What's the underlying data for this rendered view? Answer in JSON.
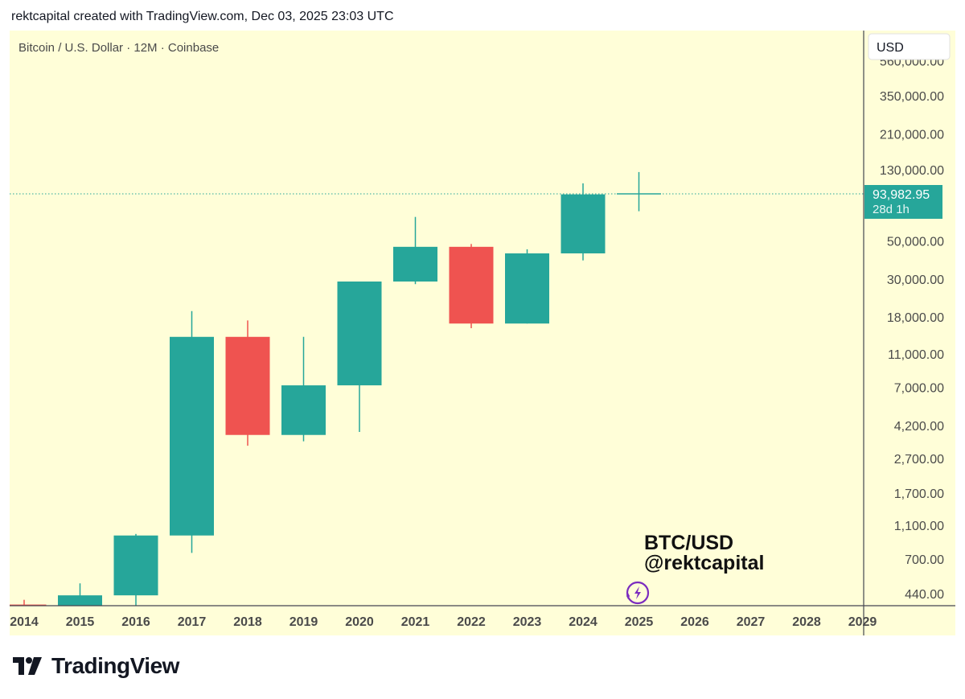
{
  "header": {
    "caption": "rektcapital created with TradingView.com, Dec 03, 2025 23:03 UTC"
  },
  "chart": {
    "symbol_title": "Bitcoin / U.S. Dollar · 12M · Coinbase",
    "currency": "USD",
    "watermark_line1": "BTC/USD",
    "watermark_line2": "@rektcapital",
    "last_price": "93,982.95",
    "countdown": "28d 1h"
  },
  "colors": {
    "background": "#fffed8",
    "up": "#26a69a",
    "down": "#ef5350",
    "axis_text": "#4a4a4a",
    "price_tag": "#26a69a"
  },
  "footer": {
    "brand": "TradingView"
  },
  "chart_data": {
    "type": "candlestick",
    "title": "Bitcoin / U.S. Dollar · 12M · Coinbase",
    "y_scale": "log",
    "ylim": [
      360,
      560000
    ],
    "y_ticks": [
      {
        "value": 560000,
        "label": "560,000.00"
      },
      {
        "value": 350000,
        "label": "350,000.00"
      },
      {
        "value": 210000,
        "label": "210,000.00"
      },
      {
        "value": 130000,
        "label": "130,000.00"
      },
      {
        "value": 50000,
        "label": "50,000.00"
      },
      {
        "value": 30000,
        "label": "30,000.00"
      },
      {
        "value": 18000,
        "label": "18,000.00"
      },
      {
        "value": 11000,
        "label": "11,000.00"
      },
      {
        "value": 7000,
        "label": "7,000.00"
      },
      {
        "value": 4200,
        "label": "4,200.00"
      },
      {
        "value": 2700,
        "label": "2,700.00"
      },
      {
        "value": 1700,
        "label": "1,700.00"
      },
      {
        "value": 1100,
        "label": "1,100.00"
      },
      {
        "value": 700,
        "label": "700.00"
      },
      {
        "value": 440,
        "label": "440.00"
      }
    ],
    "x_ticks": [
      "2014",
      "2015",
      "2016",
      "2017",
      "2018",
      "2019",
      "2020",
      "2021",
      "2022",
      "2023",
      "2024",
      "2025",
      "2026",
      "2027",
      "2028",
      "2029"
    ],
    "candles": [
      {
        "year": "2014",
        "open": 380,
        "high": 405,
        "low": 340,
        "close": 370
      },
      {
        "year": "2015",
        "open": 320,
        "high": 505,
        "low": 150,
        "close": 430
      },
      {
        "year": "2016",
        "open": 430,
        "high": 980,
        "low": 360,
        "close": 960
      },
      {
        "year": "2017",
        "open": 960,
        "high": 19500,
        "low": 760,
        "close": 13800
      },
      {
        "year": "2018",
        "open": 13800,
        "high": 17200,
        "low": 3200,
        "close": 3700
      },
      {
        "year": "2019",
        "open": 3700,
        "high": 13800,
        "low": 3400,
        "close": 7200
      },
      {
        "year": "2020",
        "open": 7200,
        "high": 29000,
        "low": 3850,
        "close": 29000
      },
      {
        "year": "2021",
        "open": 29000,
        "high": 69000,
        "low": 28000,
        "close": 46200
      },
      {
        "year": "2022",
        "open": 46200,
        "high": 48000,
        "low": 15500,
        "close": 16500
      },
      {
        "year": "2023",
        "open": 16500,
        "high": 44700,
        "low": 16500,
        "close": 42300
      },
      {
        "year": "2024",
        "open": 42300,
        "high": 108300,
        "low": 38500,
        "close": 93400
      },
      {
        "year": "2025",
        "open": 93400,
        "high": 126000,
        "low": 74500,
        "close": 93983
      }
    ],
    "last_price": 93982.95
  }
}
